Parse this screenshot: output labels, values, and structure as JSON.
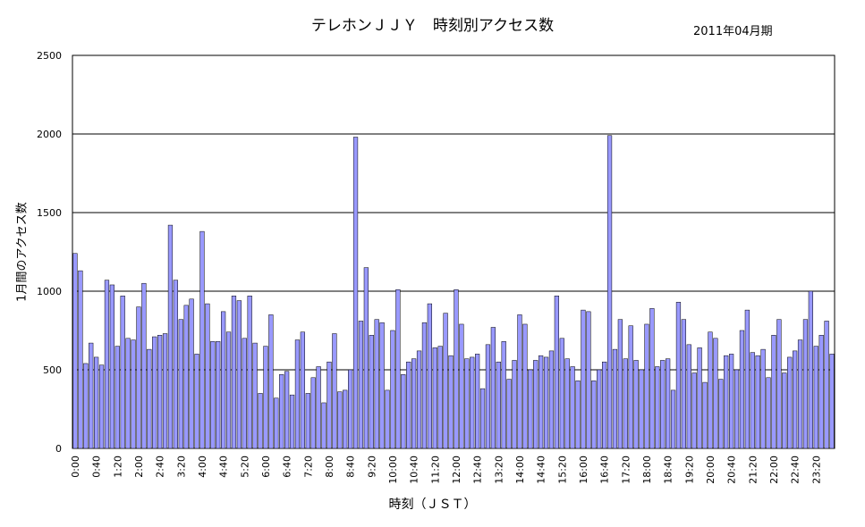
{
  "chart_data": {
    "type": "bar",
    "title": "テレホンＪＪＹ　時刻別アクセス数",
    "subtitle": "2011年04月期",
    "xlabel": "時刻（ＪＳＴ）",
    "ylabel": "1月間のアクセス数",
    "ylim": [
      0,
      2500
    ],
    "yticks": [
      0,
      500,
      1000,
      1500,
      2000,
      2500
    ],
    "grid": true,
    "bar_color": "#9999ff",
    "x_tick_labels": [
      "0:00",
      "0:40",
      "1:20",
      "2:00",
      "2:40",
      "3:20",
      "4:00",
      "4:40",
      "5:20",
      "6:00",
      "6:40",
      "7:20",
      "8:00",
      "8:40",
      "9:20",
      "10:00",
      "10:40",
      "11:20",
      "12:00",
      "12:40",
      "13:20",
      "14:00",
      "14:40",
      "15:20",
      "16:00",
      "16:40",
      "17:20",
      "18:00",
      "18:40",
      "19:20",
      "20:00",
      "20:40",
      "21:20",
      "22:00",
      "22:40",
      "23:20"
    ],
    "values": [
      1240,
      1130,
      540,
      670,
      580,
      530,
      1070,
      1040,
      650,
      970,
      700,
      690,
      900,
      1050,
      630,
      710,
      720,
      730,
      1420,
      1070,
      820,
      910,
      950,
      600,
      1380,
      920,
      680,
      680,
      870,
      740,
      970,
      940,
      700,
      970,
      670,
      350,
      650,
      850,
      320,
      470,
      490,
      340,
      690,
      740,
      350,
      450,
      520,
      290,
      550,
      730,
      360,
      370,
      500,
      1980,
      810,
      1150,
      720,
      820,
      800,
      370,
      750,
      1010,
      470,
      550,
      570,
      620,
      800,
      920,
      640,
      650,
      860,
      590,
      1010,
      790,
      570,
      580,
      600,
      380,
      660,
      770,
      550,
      680,
      440,
      560,
      850,
      790,
      500,
      560,
      590,
      580,
      620,
      970,
      700,
      570,
      520,
      430,
      880,
      870,
      430,
      500,
      550,
      1990,
      630,
      820,
      570,
      780,
      560,
      500,
      790,
      890,
      520,
      560,
      570,
      370,
      930,
      820,
      660,
      480,
      640,
      420,
      740,
      700,
      440,
      590,
      600,
      500,
      750,
      880,
      610,
      590,
      630,
      450,
      720,
      820,
      480,
      580,
      620,
      690,
      820,
      1000,
      650,
      720,
      810,
      600
    ]
  }
}
